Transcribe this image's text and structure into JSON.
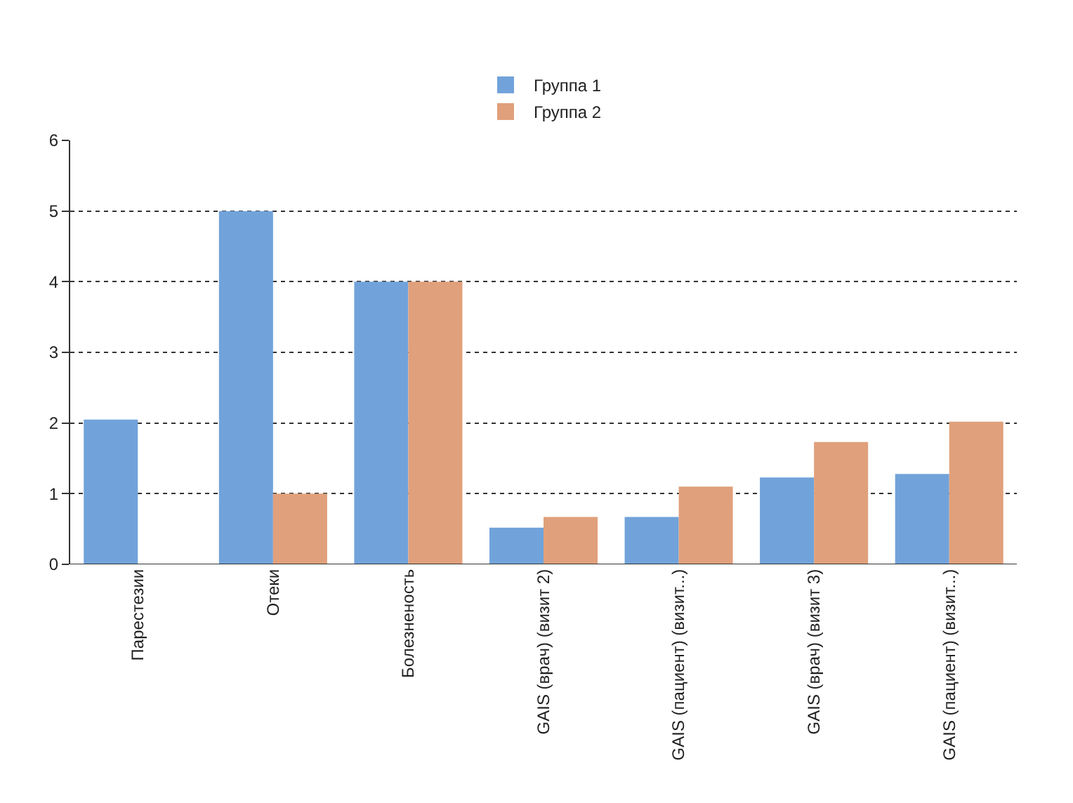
{
  "chart_data": {
    "type": "bar",
    "categories": [
      "Парестезии",
      "Отеки",
      "Болезненость",
      "GAIS (врач) (визит 2)",
      "GAIS (пациент) (визит...)",
      "GAIS (врач) (визит 3)",
      "GAIS (пациент) (визит...)"
    ],
    "series": [
      {
        "name": "Группа 1",
        "color": "#71a3da",
        "values": [
          2.05,
          5,
          4,
          0.52,
          0.67,
          1.23,
          1.28
        ]
      },
      {
        "name": "Группа 2",
        "color": "#e0a07b",
        "values": [
          null,
          1,
          4,
          0.67,
          1.1,
          1.73,
          2.02
        ]
      }
    ],
    "ylim": [
      0,
      6
    ],
    "yticks": [
      0,
      1,
      2,
      3,
      4,
      5,
      6
    ],
    "grid": "y",
    "legend": "top"
  }
}
